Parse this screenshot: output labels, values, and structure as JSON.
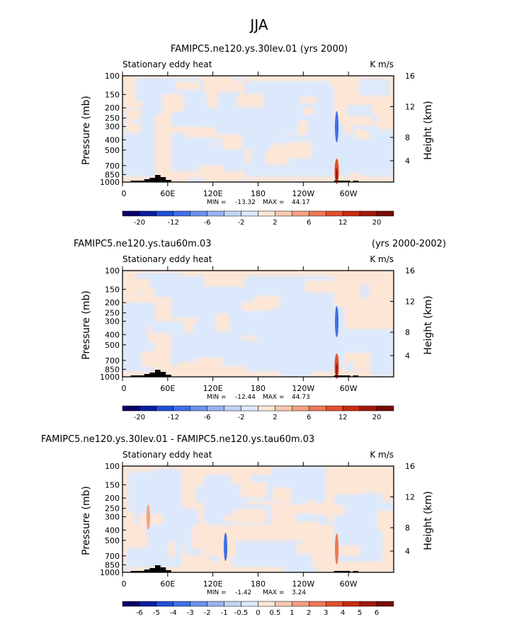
{
  "figure_title": "JJA",
  "chart_data": [
    {
      "type": "heatmap",
      "title": "FAMIPC5.ne120.ys.30lev.01 (yrs 2000)",
      "subtitle_left": "Stationary eddy heat",
      "subtitle_right": "K m/s",
      "ylabel": "Pressure (mb)",
      "ylabel_right": "Height (km)",
      "y_ticks": [
        "100",
        "150",
        "200",
        "250",
        "300",
        "400",
        "500",
        "700",
        "850",
        "1000"
      ],
      "y_right_ticks": [
        "16",
        "12",
        "8",
        "4"
      ],
      "x_ticks": [
        "0",
        "60E",
        "120E",
        "180",
        "120W",
        "60W"
      ],
      "stats": {
        "min_label": "MIN =",
        "min": "-13.32",
        "max_label": "MAX =",
        "max": "44.17"
      },
      "colorbar": {
        "labels": [
          "-20",
          "-12",
          "-6",
          "-2",
          "2",
          "6",
          "12",
          "20"
        ],
        "colors": [
          "#08006a",
          "#0a1ea0",
          "#1d4fd8",
          "#3f6fe6",
          "#6b91ec",
          "#97b3f1",
          "#c2d4f6",
          "#dce8fb",
          "#fde6d6",
          "#f7c8ae",
          "#f3a182",
          "#ee7856",
          "#e34f2c",
          "#c92c12",
          "#a3180a",
          "#780b05"
        ]
      },
      "min": -13.32,
      "max": 44.17
    },
    {
      "type": "heatmap",
      "title": "FAMIPC5.ne120.ys.tau60m.03",
      "title_right": "(yrs 2000-2002)",
      "subtitle_left": "Stationary eddy heat",
      "subtitle_right": "K m/s",
      "ylabel": "Pressure (mb)",
      "ylabel_right": "Height (km)",
      "y_ticks": [
        "100",
        "150",
        "200",
        "250",
        "300",
        "400",
        "500",
        "700",
        "850",
        "1000"
      ],
      "y_right_ticks": [
        "16",
        "12",
        "8",
        "4"
      ],
      "x_ticks": [
        "0",
        "60E",
        "120E",
        "180",
        "120W",
        "60W"
      ],
      "stats": {
        "min_label": "MIN =",
        "min": "-12.44",
        "max_label": "MAX =",
        "max": "44.73"
      },
      "colorbar": {
        "labels": [
          "-20",
          "-12",
          "-6",
          "-2",
          "2",
          "6",
          "12",
          "20"
        ],
        "colors": [
          "#08006a",
          "#0a1ea0",
          "#1d4fd8",
          "#3f6fe6",
          "#6b91ec",
          "#97b3f1",
          "#c2d4f6",
          "#dce8fb",
          "#fde6d6",
          "#f7c8ae",
          "#f3a182",
          "#ee7856",
          "#e34f2c",
          "#c92c12",
          "#a3180a",
          "#780b05"
        ]
      },
      "min": -12.44,
      "max": 44.73
    },
    {
      "type": "heatmap",
      "title": "FAMIPC5.ne120.ys.30lev.01 - FAMIPC5.ne120.ys.tau60m.03",
      "subtitle_left": "Stationary eddy heat",
      "subtitle_right": "K m/s",
      "ylabel": "Pressure (mb)",
      "ylabel_right": "Height (km)",
      "y_ticks": [
        "100",
        "150",
        "200",
        "250",
        "300",
        "400",
        "500",
        "700",
        "850",
        "1000"
      ],
      "y_right_ticks": [
        "16",
        "12",
        "8",
        "4"
      ],
      "x_ticks": [
        "0",
        "60E",
        "120E",
        "180",
        "120W",
        "60W"
      ],
      "stats": {
        "min_label": "MIN =",
        "min": "-1.42",
        "max_label": "MAX =",
        "max": "3.24"
      },
      "colorbar": {
        "labels": [
          "-6",
          "-5",
          "-4",
          "-3",
          "-2",
          "-1",
          "-0.5",
          "0",
          "0.5",
          "1",
          "2",
          "3",
          "4",
          "5",
          "6"
        ],
        "colors": [
          "#08006a",
          "#0a1ea0",
          "#1d4fd8",
          "#3f6fe6",
          "#6b91ec",
          "#97b3f1",
          "#c2d4f6",
          "#dce8fb",
          "#fde6d6",
          "#f7c8ae",
          "#f3a182",
          "#ee7856",
          "#e34f2c",
          "#c92c12",
          "#a3180a",
          "#780b05"
        ]
      },
      "min": -1.42,
      "max": 3.24
    }
  ]
}
